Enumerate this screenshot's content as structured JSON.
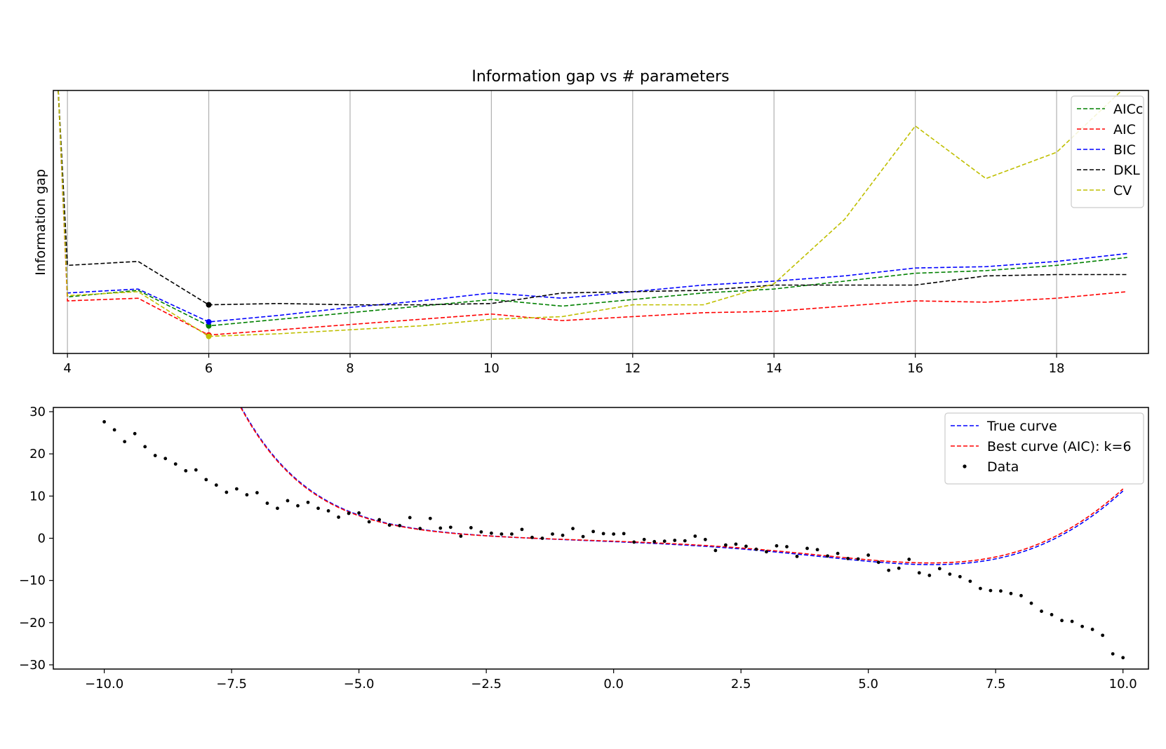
{
  "chart_data": [
    {
      "type": "line",
      "title": "Information gap vs # parameters",
      "xlabel": "",
      "ylabel": "Information gap",
      "xlim": [
        3.8,
        19.3
      ],
      "ylim": [
        0,
        100
      ],
      "show_yticks": false,
      "grid": "x",
      "legend_position": "top-right",
      "x_ticks": [
        4,
        6,
        8,
        10,
        12,
        14,
        16,
        18
      ],
      "x": [
        4,
        5,
        6,
        7,
        8,
        9,
        10,
        11,
        12,
        13,
        14,
        15,
        16,
        17,
        18,
        19
      ],
      "series": [
        {
          "name": "AICc",
          "color": "#008000",
          "values": [
            21.5,
            24.0,
            10.5,
            13.0,
            15.5,
            18.0,
            20.5,
            18.0,
            20.5,
            23.0,
            24.5,
            27.5,
            30.5,
            31.5,
            33.5,
            36.5
          ],
          "min_index": 2
        },
        {
          "name": "AIC",
          "color": "#ff0000",
          "values": [
            20.0,
            21.0,
            7.0,
            9.0,
            11.0,
            13.0,
            15.0,
            12.5,
            14.0,
            15.5,
            16.0,
            18.0,
            20.0,
            19.5,
            21.0,
            23.5
          ],
          "min_index": 2
        },
        {
          "name": "BIC",
          "color": "#0000ff",
          "values": [
            23.0,
            24.5,
            12.0,
            14.5,
            17.5,
            20.0,
            23.0,
            21.0,
            23.5,
            26.0,
            27.5,
            29.5,
            32.5,
            33.0,
            35.0,
            38.0
          ],
          "min_index": 2
        },
        {
          "name": "DKL",
          "color": "#000000",
          "values": [
            33.5,
            35.0,
            18.5,
            19.0,
            18.5,
            18.5,
            19.0,
            23.0,
            23.5,
            24.0,
            26.0,
            26.0,
            26.0,
            29.5,
            30.0,
            30.0
          ],
          "min_index": 2
        },
        {
          "name": "CV",
          "color": "#bfbf00",
          "values": [
            22.0,
            23.5,
            6.5,
            7.5,
            9.0,
            10.5,
            13.0,
            14.0,
            18.5,
            18.5,
            26.5,
            51.0,
            86.5,
            66.5,
            76.5,
            102.0
          ],
          "min_index": 2
        }
      ],
      "left_edge_values": {
        "x": 3.87,
        "value": 100
      }
    },
    {
      "type": "scatter",
      "title": "",
      "xlabel": "",
      "ylabel": "",
      "xlim": [
        -11,
        10.5
      ],
      "ylim": [
        -31,
        31
      ],
      "x_ticks": [
        -10.0,
        -7.5,
        -5.0,
        -2.5,
        0.0,
        2.5,
        5.0,
        7.5,
        10.0
      ],
      "x_tick_labels": [
        "−10.0",
        "−7.5",
        "−5.0",
        "−2.5",
        "0.0",
        "2.5",
        "5.0",
        "7.5",
        "10.0"
      ],
      "y_ticks": [
        30,
        20,
        10,
        0,
        -10,
        -20,
        -30
      ],
      "y_tick_labels": [
        "30",
        "20",
        "10",
        "0",
        "−10",
        "−20",
        "−30"
      ],
      "legend_position": "top-right",
      "curves": [
        {
          "name": "True curve",
          "color": "#0000ff",
          "coef": [
            0.8,
            0.5,
            0.03,
            0.02,
            0.0,
            0.0,
            -0.0001,
            6e-06
          ]
        },
        {
          "name": "Best curve (AIC): k=6",
          "color": "#ff0000",
          "coef": [
            0.7,
            0.45,
            0.03,
            0.02,
            0.0,
            1e-06,
            -0.0001,
            6e-06
          ]
        }
      ],
      "data_label": "Data",
      "data_points": [
        [
          -10.0,
          27.6
        ],
        [
          -9.8,
          25.7
        ],
        [
          -9.6,
          22.9
        ],
        [
          -9.4,
          24.8
        ],
        [
          -9.2,
          21.7
        ],
        [
          -9.0,
          19.6
        ],
        [
          -8.8,
          18.9
        ],
        [
          -8.6,
          17.6
        ],
        [
          -8.4,
          16.0
        ],
        [
          -8.2,
          16.2
        ],
        [
          -8.0,
          13.9
        ],
        [
          -7.8,
          12.6
        ],
        [
          -7.6,
          10.9
        ],
        [
          -7.4,
          11.7
        ],
        [
          -7.2,
          10.3
        ],
        [
          -7.0,
          10.8
        ],
        [
          -6.8,
          8.3
        ],
        [
          -6.6,
          7.1
        ],
        [
          -6.4,
          8.9
        ],
        [
          -6.2,
          7.7
        ],
        [
          -6.0,
          8.5
        ],
        [
          -5.8,
          7.1
        ],
        [
          -5.6,
          6.5
        ],
        [
          -5.4,
          5.0
        ],
        [
          -5.2,
          5.9
        ],
        [
          -5.0,
          6.0
        ],
        [
          -4.8,
          3.9
        ],
        [
          -4.6,
          4.4
        ],
        [
          -4.4,
          3.1
        ],
        [
          -4.2,
          3.0
        ],
        [
          -4.0,
          4.9
        ],
        [
          -3.8,
          2.3
        ],
        [
          -3.6,
          4.7
        ],
        [
          -3.4,
          2.4
        ],
        [
          -3.2,
          2.6
        ],
        [
          -3.0,
          0.5
        ],
        [
          -2.8,
          2.5
        ],
        [
          -2.6,
          1.5
        ],
        [
          -2.4,
          1.2
        ],
        [
          -2.2,
          1.0
        ],
        [
          -2.0,
          1.0
        ],
        [
          -1.8,
          2.1
        ],
        [
          -1.6,
          0.2
        ],
        [
          -1.4,
          0.0
        ],
        [
          -1.2,
          1.0
        ],
        [
          -1.0,
          0.7
        ],
        [
          -0.8,
          2.3
        ],
        [
          -0.6,
          0.4
        ],
        [
          -0.4,
          1.6
        ],
        [
          -0.2,
          1.1
        ],
        [
          0.0,
          1.0
        ],
        [
          0.2,
          1.1
        ],
        [
          0.4,
          -0.9
        ],
        [
          0.6,
          -0.3
        ],
        [
          0.8,
          -0.8
        ],
        [
          1.0,
          -0.7
        ],
        [
          1.2,
          -0.5
        ],
        [
          1.4,
          -0.6
        ],
        [
          1.6,
          0.5
        ],
        [
          1.8,
          -0.3
        ],
        [
          2.0,
          -2.9
        ],
        [
          2.2,
          -1.6
        ],
        [
          2.4,
          -1.4
        ],
        [
          2.6,
          -1.9
        ],
        [
          2.8,
          -2.6
        ],
        [
          3.0,
          -3.2
        ],
        [
          3.2,
          -1.8
        ],
        [
          3.4,
          -2.0
        ],
        [
          3.6,
          -4.3
        ],
        [
          3.8,
          -2.4
        ],
        [
          4.0,
          -2.7
        ],
        [
          4.2,
          -4.2
        ],
        [
          4.4,
          -3.6
        ],
        [
          4.6,
          -4.8
        ],
        [
          4.8,
          -4.9
        ],
        [
          5.0,
          -4.0
        ],
        [
          5.2,
          -5.7
        ],
        [
          5.4,
          -7.6
        ],
        [
          5.6,
          -7.1
        ],
        [
          5.8,
          -5.0
        ],
        [
          6.0,
          -8.2
        ],
        [
          6.2,
          -8.8
        ],
        [
          6.4,
          -7.2
        ],
        [
          6.6,
          -8.5
        ],
        [
          6.8,
          -9.1
        ],
        [
          7.0,
          -10.2
        ],
        [
          7.2,
          -11.9
        ],
        [
          7.4,
          -12.4
        ],
        [
          7.6,
          -12.5
        ],
        [
          7.8,
          -13.1
        ],
        [
          8.0,
          -13.6
        ],
        [
          8.2,
          -15.4
        ],
        [
          8.4,
          -17.3
        ],
        [
          8.6,
          -18.1
        ],
        [
          8.8,
          -19.5
        ],
        [
          9.0,
          -19.7
        ],
        [
          9.2,
          -20.9
        ],
        [
          9.4,
          -21.6
        ],
        [
          9.6,
          -23.0
        ],
        [
          9.8,
          -27.4
        ],
        [
          10.0,
          -28.3
        ]
      ]
    }
  ]
}
